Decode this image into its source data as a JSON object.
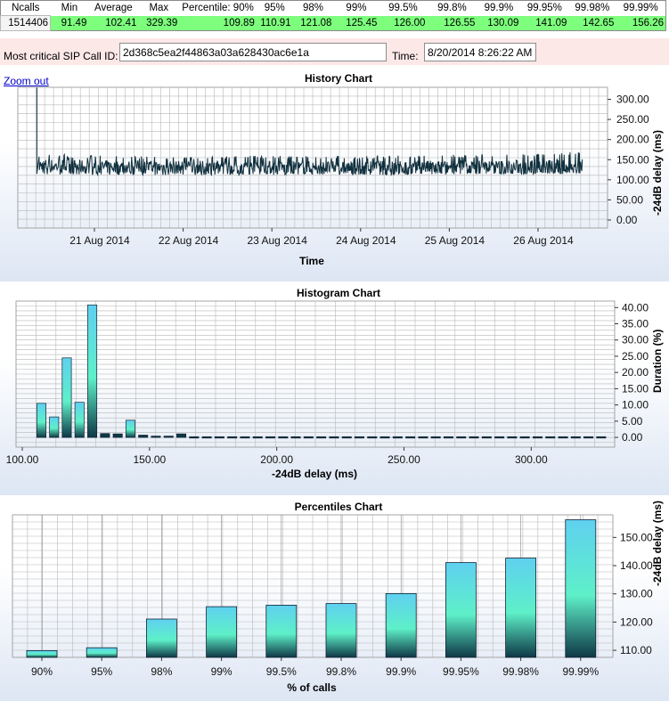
{
  "stats": {
    "headers": [
      "Ncalls",
      "Min",
      "Average",
      "Max",
      "Percentile: 90%",
      "95%",
      "98%",
      "99%",
      "99.5%",
      "99.8%",
      "99.9%",
      "99.95%",
      "99.98%",
      "99.99%"
    ],
    "values": [
      "1514406",
      "91.49",
      "102.41",
      "329.39",
      "109.89",
      "110.91",
      "121.08",
      "125.45",
      "126.00",
      "126.55",
      "130.09",
      "141.09",
      "142.65",
      "156.26"
    ]
  },
  "sip": {
    "label": "Most critical SIP Call ID:",
    "call_id": "2d368c5ea2f44863a03a628430ac6e1a",
    "time_label": "Time:",
    "time_value": "8/20/2014 8:26:22 AM"
  },
  "zoom_out": "Zoom out",
  "colors": {
    "bar_top": "#5fd0f0",
    "bar_mid": "#5ef0c8",
    "bar_bottom": "#0e3846",
    "history_line": "#10303e",
    "grid": "#b8b8b8",
    "stats_green": "#7dff7d",
    "sip_row_bg": "#fde8e8"
  },
  "chart_data": [
    {
      "type": "line",
      "title": "History Chart",
      "xlabel": "Time",
      "ylabel": "-24dB delay (ms)",
      "x_ticks": [
        "21 Aug 2014",
        "22 Aug 2014",
        "23 Aug 2014",
        "24 Aug 2014",
        "25 Aug 2014",
        "26 Aug 2014"
      ],
      "y_ticks": [
        "0.00",
        "50.00",
        "100.00",
        "150.00",
        "200.00",
        "250.00",
        "300.00"
      ],
      "ylim": [
        -20,
        330
      ],
      "series": [
        {
          "x": [
            "2014-08-20 08:26",
            "2014-08-20 09:00",
            "2014-08-21 00:00",
            "2014-08-22 00:00",
            "2014-08-23 00:00",
            "2014-08-24 00:00",
            "2014-08-25 00:00",
            "2014-08-26 00:00",
            "2014-08-26 12:00"
          ],
          "values": [
            329.39,
            135,
            132,
            131,
            130,
            130,
            131,
            132,
            133
          ],
          "band_low": [
            115,
            113,
            112,
            112,
            112,
            112,
            113,
            114,
            114
          ],
          "band_high": [
            170,
            165,
            160,
            158,
            160,
            160,
            162,
            165,
            170
          ]
        }
      ],
      "grid": true
    },
    {
      "type": "bar",
      "title": "Histogram Chart",
      "xlabel": "-24dB delay (ms)",
      "ylabel": "Duration (%)",
      "x_ticks": [
        "100.00",
        "150.00",
        "200.00",
        "250.00",
        "300.00"
      ],
      "y_ticks": [
        "0.00",
        "5.00",
        "10.00",
        "15.00",
        "20.00",
        "25.00",
        "30.00",
        "35.00",
        "40.00"
      ],
      "xlim": [
        100,
        330
      ],
      "ylim": [
        -3,
        42
      ],
      "bin_width": 5,
      "x": [
        107.5,
        112.5,
        117.5,
        122.5,
        127.5,
        132.5,
        137.5,
        142.5,
        147.5,
        152.5,
        157.5,
        162.5,
        167.5,
        172.5,
        177.5,
        182.5,
        187.5,
        192.5,
        197.5,
        202.5,
        207.5,
        212.5,
        217.5,
        222.5,
        227.5,
        232.5,
        237.5,
        242.5,
        247.5,
        252.5,
        257.5,
        262.5,
        267.5,
        272.5,
        277.5,
        282.5,
        287.5,
        292.5,
        297.5,
        302.5,
        307.5,
        312.5,
        317.5,
        322.5,
        327.5
      ],
      "values": [
        10.5,
        6.3,
        24.5,
        10.8,
        40.8,
        1.2,
        1.1,
        5.3,
        0.7,
        0.4,
        0.4,
        1.1,
        0.2,
        0.2,
        0.2,
        0.2,
        0.2,
        0.2,
        0.2,
        0.2,
        0.2,
        0.2,
        0.2,
        0.2,
        0.2,
        0.2,
        0.2,
        0.2,
        0.2,
        0.2,
        0.2,
        0.2,
        0.2,
        0.2,
        0.2,
        0.2,
        0.2,
        0.2,
        0.2,
        0.2,
        0.2,
        0.2,
        0.2,
        0.2,
        0.2
      ],
      "grid": true
    },
    {
      "type": "bar",
      "title": "Percentiles Chart",
      "xlabel": "% of calls",
      "ylabel": "-24dB delay (ms)",
      "categories": [
        "90%",
        "95%",
        "98%",
        "99%",
        "99.5%",
        "99.8%",
        "99.9%",
        "99.95%",
        "99.98%",
        "99.99%"
      ],
      "values": [
        109.89,
        110.91,
        121.08,
        125.45,
        126.0,
        126.55,
        130.09,
        141.09,
        142.65,
        156.26
      ],
      "y_ticks": [
        "110.00",
        "120.00",
        "130.00",
        "140.00",
        "150.00"
      ],
      "ylim": [
        107.5,
        158
      ],
      "grid": true
    }
  ]
}
